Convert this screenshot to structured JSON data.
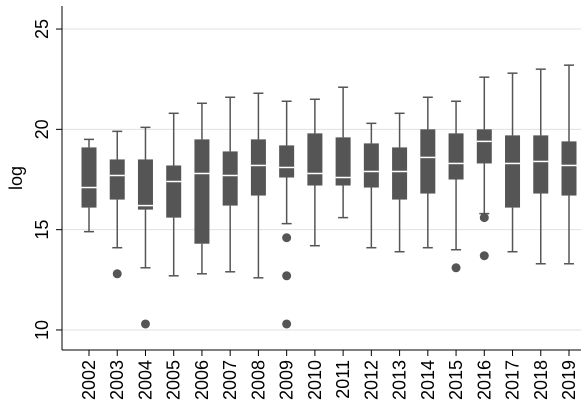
{
  "chart_data": {
    "type": "box",
    "title": "",
    "xlabel": "",
    "ylabel": "log",
    "ylim": [
      9.5,
      25.5
    ],
    "yticks": [
      10,
      15,
      20,
      25
    ],
    "grid": true,
    "colors": {
      "box": "#555555",
      "median": "#ffffff",
      "whisker": "#555555",
      "outlier": "#555555",
      "grid": "#e0e0e0",
      "axis": "#000000"
    },
    "categories": [
      "2002",
      "2003",
      "2004",
      "2005",
      "2006",
      "2007",
      "2008",
      "2009",
      "2010",
      "2011",
      "2012",
      "2013",
      "2014",
      "2015",
      "2016",
      "2017",
      "2018",
      "2019"
    ],
    "boxes": [
      {
        "low": 14.9,
        "q1": 16.1,
        "median": 17.1,
        "q3": 19.1,
        "high": 19.5,
        "outliers": []
      },
      {
        "low": 14.1,
        "q1": 16.5,
        "median": 17.7,
        "q3": 18.5,
        "high": 19.9,
        "outliers": [
          12.8
        ]
      },
      {
        "low": 13.1,
        "q1": 16.0,
        "median": 16.2,
        "q3": 18.5,
        "high": 20.1,
        "outliers": [
          10.3
        ]
      },
      {
        "low": 12.7,
        "q1": 15.6,
        "median": 17.4,
        "q3": 18.2,
        "high": 20.8,
        "outliers": []
      },
      {
        "low": 12.8,
        "q1": 14.3,
        "median": 17.8,
        "q3": 19.5,
        "high": 21.3,
        "outliers": []
      },
      {
        "low": 12.9,
        "q1": 16.2,
        "median": 17.7,
        "q3": 18.9,
        "high": 21.6,
        "outliers": []
      },
      {
        "low": 12.6,
        "q1": 16.7,
        "median": 18.2,
        "q3": 19.5,
        "high": 21.8,
        "outliers": []
      },
      {
        "low": 15.3,
        "q1": 17.6,
        "median": 18.1,
        "q3": 19.2,
        "high": 21.4,
        "outliers": [
          14.6,
          12.7,
          10.3
        ]
      },
      {
        "low": 14.2,
        "q1": 17.2,
        "median": 17.8,
        "q3": 19.8,
        "high": 21.5,
        "outliers": []
      },
      {
        "low": 15.6,
        "q1": 17.2,
        "median": 17.6,
        "q3": 19.6,
        "high": 22.1,
        "outliers": []
      },
      {
        "low": 14.1,
        "q1": 17.1,
        "median": 17.9,
        "q3": 19.3,
        "high": 20.3,
        "outliers": []
      },
      {
        "low": 13.9,
        "q1": 16.5,
        "median": 17.9,
        "q3": 19.1,
        "high": 20.8,
        "outliers": []
      },
      {
        "low": 14.1,
        "q1": 16.8,
        "median": 18.6,
        "q3": 20.0,
        "high": 21.6,
        "outliers": []
      },
      {
        "low": 14.0,
        "q1": 17.5,
        "median": 18.3,
        "q3": 19.8,
        "high": 21.4,
        "outliers": [
          13.1
        ]
      },
      {
        "low": 15.8,
        "q1": 18.3,
        "median": 19.4,
        "q3": 20.0,
        "high": 22.6,
        "outliers": [
          15.6,
          13.7
        ]
      },
      {
        "low": 13.9,
        "q1": 16.1,
        "median": 18.3,
        "q3": 19.7,
        "high": 22.8,
        "outliers": []
      },
      {
        "low": 13.3,
        "q1": 16.8,
        "median": 18.4,
        "q3": 19.7,
        "high": 23.0,
        "outliers": []
      },
      {
        "low": 13.3,
        "q1": 16.7,
        "median": 18.2,
        "q3": 19.4,
        "high": 23.2,
        "outliers": []
      }
    ]
  }
}
